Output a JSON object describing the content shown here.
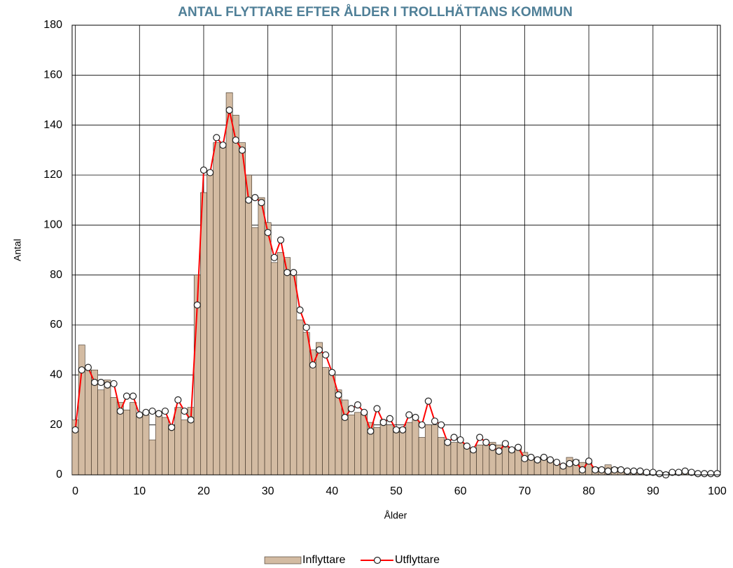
{
  "chart_data": {
    "type": "bar",
    "title": "ANTAL FLYTTARE EFTER ÅLDER I TROLLHÄTTANS KOMMUN",
    "x_label": "Ålder",
    "y_label": "Antal",
    "x": [
      0,
      1,
      2,
      3,
      4,
      5,
      6,
      7,
      8,
      9,
      10,
      11,
      12,
      13,
      14,
      15,
      16,
      17,
      18,
      19,
      20,
      21,
      22,
      23,
      24,
      25,
      26,
      27,
      28,
      29,
      30,
      31,
      32,
      33,
      34,
      35,
      36,
      37,
      38,
      39,
      40,
      41,
      42,
      43,
      44,
      45,
      46,
      47,
      48,
      49,
      50,
      51,
      52,
      53,
      54,
      55,
      56,
      57,
      58,
      59,
      60,
      61,
      62,
      63,
      64,
      65,
      66,
      67,
      68,
      69,
      70,
      71,
      72,
      73,
      74,
      75,
      76,
      77,
      78,
      79,
      80,
      81,
      82,
      83,
      84,
      85,
      86,
      87,
      88,
      89,
      90,
      91,
      92,
      93,
      94,
      95,
      96,
      97,
      98,
      99,
      100
    ],
    "series": [
      {
        "name": "Inflyttare",
        "type": "bar",
        "color": "#d3bba2",
        "values": [
          22,
          52,
          42,
          42,
          34,
          38,
          31,
          29,
          26,
          29,
          24,
          24,
          14,
          24,
          23,
          19,
          27,
          22,
          27,
          80,
          113,
          121,
          133,
          131,
          153,
          144,
          133,
          120,
          99,
          111,
          101,
          85,
          89,
          87,
          80,
          62,
          57,
          50,
          53,
          43,
          41,
          34,
          30,
          24,
          25,
          25,
          21,
          19,
          22,
          20,
          17,
          19,
          21,
          22,
          15,
          20,
          20,
          15,
          14,
          13,
          13,
          11,
          10,
          12,
          12,
          13,
          12,
          11,
          10,
          11,
          9,
          7,
          7,
          6,
          6,
          5,
          4,
          7,
          6,
          5,
          5,
          3,
          2,
          4,
          3,
          2,
          1,
          1,
          1,
          1,
          1,
          1,
          1,
          1,
          1,
          1,
          0,
          0,
          0,
          0,
          0
        ]
      },
      {
        "name": "Utflyttare",
        "type": "line",
        "color": "#ff0000",
        "values": [
          18,
          42,
          43,
          37,
          37,
          36,
          36.5,
          25.5,
          31.5,
          31.5,
          24,
          25,
          25.5,
          24.5,
          25.5,
          19,
          30,
          25.5,
          22,
          68,
          122,
          121,
          135,
          132,
          146,
          134,
          130,
          110,
          111,
          109,
          97,
          87,
          94,
          81,
          81,
          66,
          59,
          44,
          50,
          48,
          41,
          32,
          23,
          26.5,
          28,
          25,
          17.5,
          26.5,
          21,
          22.5,
          18,
          18,
          24,
          23,
          20,
          29.5,
          21.5,
          20,
          13,
          15,
          14,
          11.5,
          10,
          15,
          13,
          11,
          9.5,
          12.5,
          10,
          11,
          6.5,
          7,
          6,
          7,
          6,
          5,
          3.5,
          4.5,
          5,
          2,
          5.5,
          2,
          2,
          1.5,
          2,
          2,
          1.5,
          1.5,
          1.5,
          1,
          1,
          0.5,
          0,
          1,
          1,
          1.5,
          1,
          0.5,
          0.5,
          0.5,
          0.5
        ]
      }
    ],
    "xlim": [
      -0.5,
      100.5
    ],
    "xticks": [
      0,
      10,
      20,
      30,
      40,
      50,
      60,
      70,
      80,
      90,
      100
    ],
    "ylim": [
      0,
      180
    ],
    "yticks": [
      0,
      20,
      40,
      60,
      80,
      100,
      120,
      140,
      160,
      180
    ],
    "grid": true,
    "legend": "bottom"
  }
}
